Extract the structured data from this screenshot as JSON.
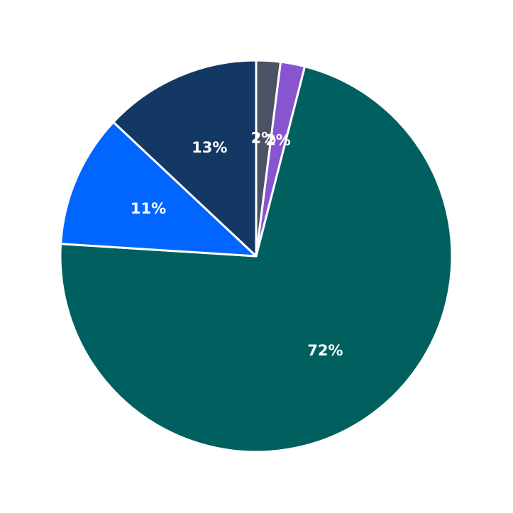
{
  "chart_data": {
    "type": "pie",
    "values": [
      2,
      2,
      72,
      11,
      13
    ],
    "value_labels": [
      "2%",
      "2%",
      "72%",
      "11%",
      "13%"
    ],
    "colors": [
      "#4a5264",
      "#8755d0",
      "#005f5f",
      "#0066ff",
      "#143864"
    ]
  }
}
